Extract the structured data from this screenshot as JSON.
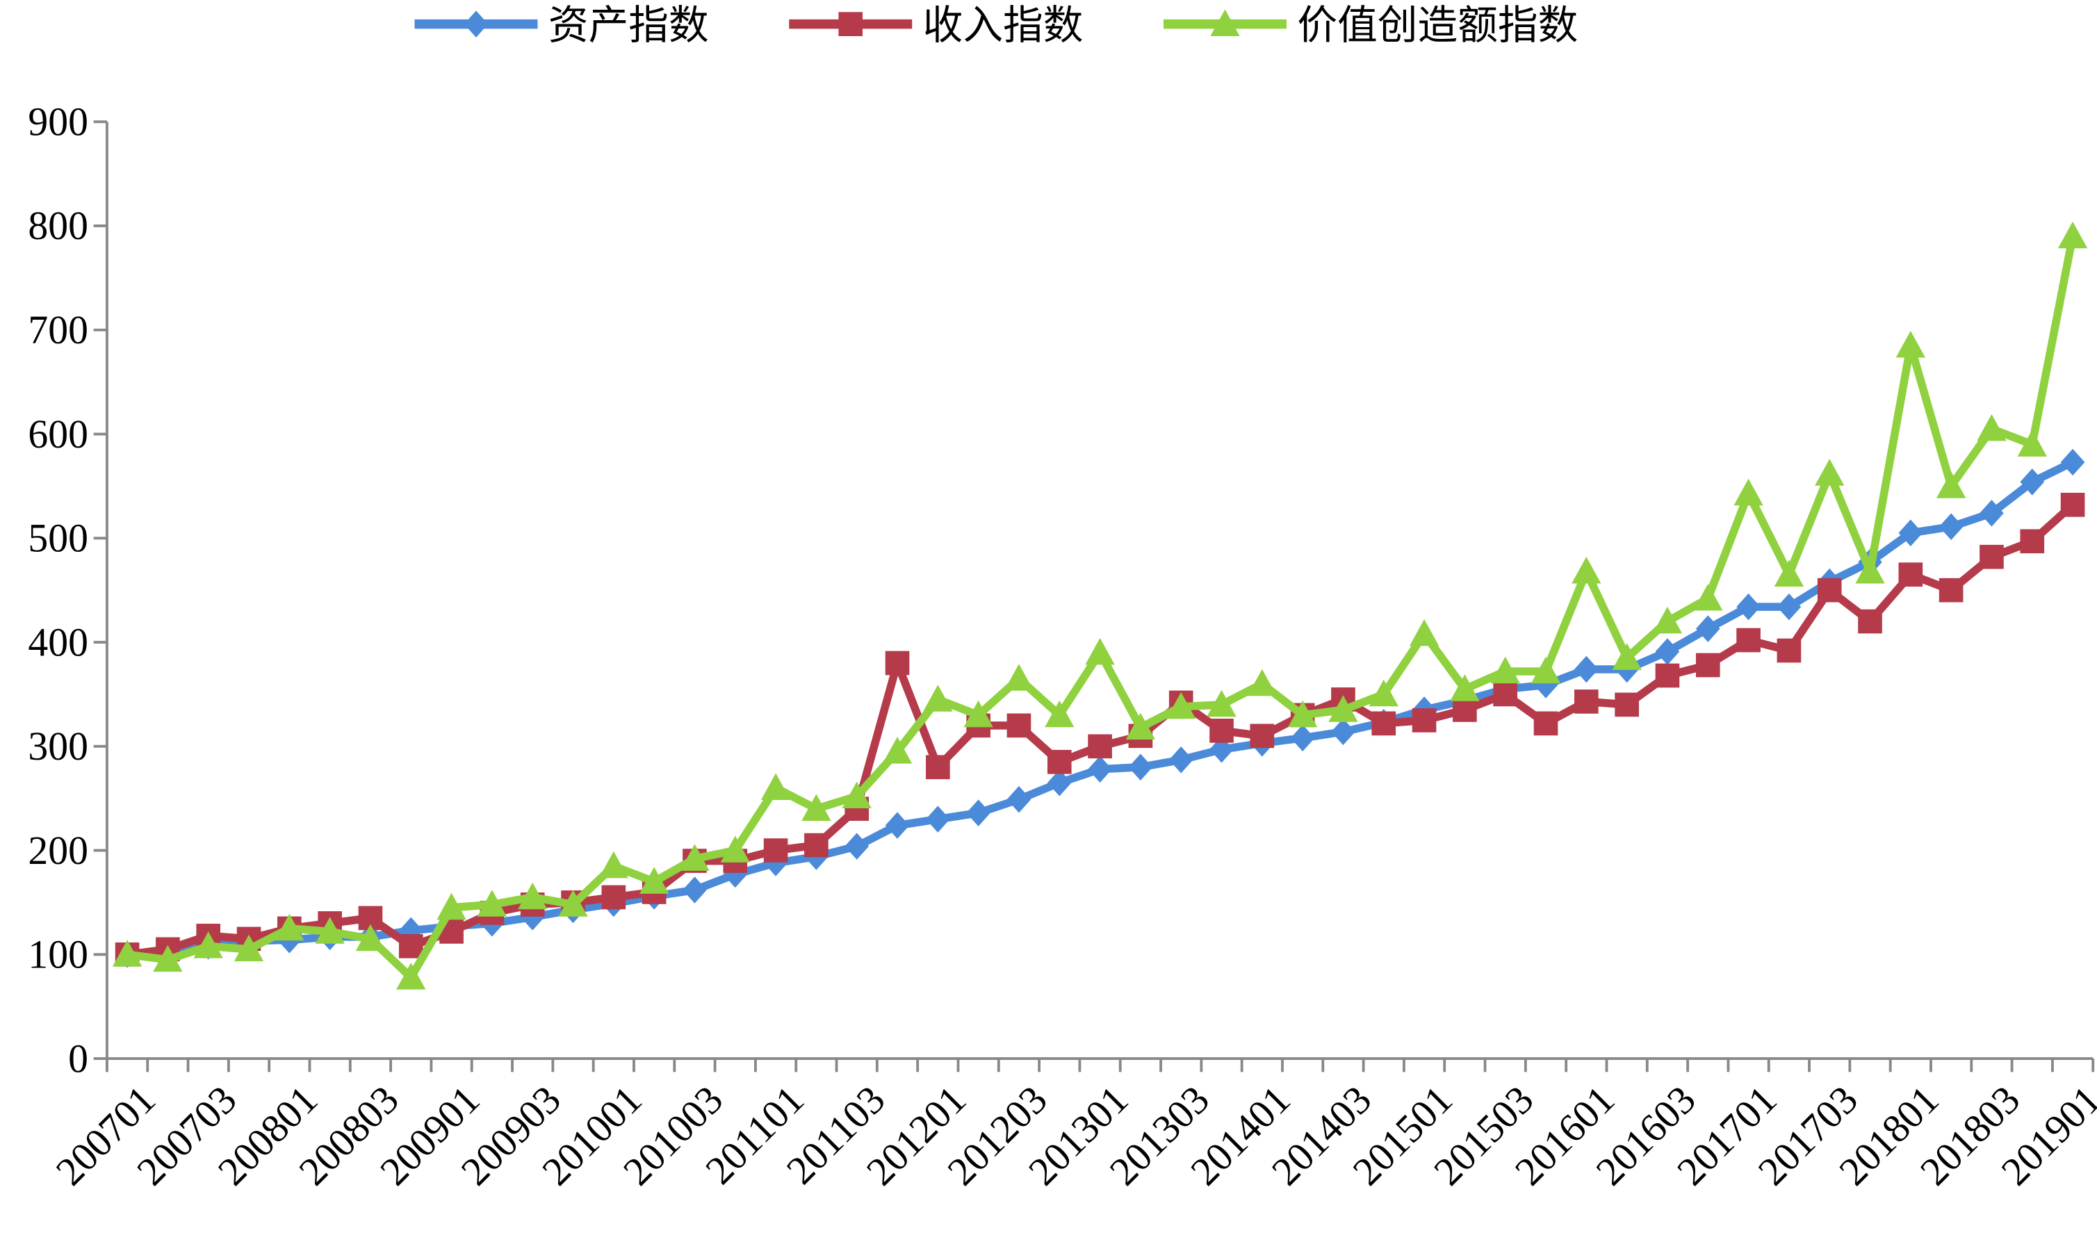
{
  "chart_data": {
    "type": "line",
    "categories": [
      "200701",
      null,
      "200703",
      null,
      "200801",
      null,
      "200803",
      null,
      "200901",
      null,
      "200903",
      null,
      "201001",
      null,
      "201003",
      null,
      "201101",
      null,
      "201103",
      null,
      "201201",
      null,
      "201203",
      null,
      "201301",
      null,
      "201303",
      null,
      "201401",
      null,
      "201403",
      null,
      "201501",
      null,
      "201503",
      null,
      "201601",
      null,
      "201603",
      null,
      "201701",
      null,
      "201703",
      null,
      "201801",
      null,
      "201803",
      null,
      "201901"
    ],
    "series": [
      {
        "name": "资产指数",
        "color": "#4a8ad9",
        "marker": "diamond",
        "values": [
          100,
          103,
          108,
          113,
          114,
          117,
          117,
          123,
          127,
          130,
          136,
          143,
          149,
          156,
          162,
          177,
          188,
          194,
          204,
          224,
          230,
          236,
          249,
          265,
          278,
          280,
          287,
          297,
          303,
          308,
          314,
          323,
          335,
          344,
          355,
          359,
          374,
          374,
          391,
          413,
          434,
          434,
          458,
          477,
          505,
          511,
          524,
          554,
          573
        ]
      },
      {
        "name": "收入指数",
        "color": "#b53a4a",
        "marker": "square",
        "values": [
          100,
          105,
          118,
          115,
          125,
          130,
          135,
          108,
          122,
          140,
          148,
          150,
          155,
          160,
          190,
          190,
          200,
          205,
          240,
          380,
          280,
          320,
          320,
          285,
          300,
          310,
          342,
          315,
          310,
          330,
          345,
          322,
          325,
          335,
          350,
          322,
          343,
          340,
          368,
          378,
          402,
          392,
          450,
          420,
          465,
          450,
          482,
          497,
          532
        ]
      },
      {
        "name": "价值创造额指数",
        "color": "#8fd13e",
        "marker": "triangle",
        "values": [
          100,
          95,
          108,
          105,
          125,
          122,
          115,
          78,
          145,
          148,
          155,
          148,
          185,
          170,
          192,
          200,
          260,
          240,
          252,
          295,
          345,
          330,
          365,
          330,
          390,
          318,
          338,
          340,
          360,
          330,
          335,
          350,
          408,
          355,
          372,
          372,
          468,
          385,
          420,
          442,
          543,
          465,
          562,
          468,
          685,
          550,
          605,
          590,
          790
        ]
      }
    ],
    "ylim": [
      0,
      900
    ],
    "yticks": [
      0,
      100,
      200,
      300,
      400,
      500,
      600,
      700,
      800,
      900
    ],
    "grid": false,
    "legend": "top"
  }
}
